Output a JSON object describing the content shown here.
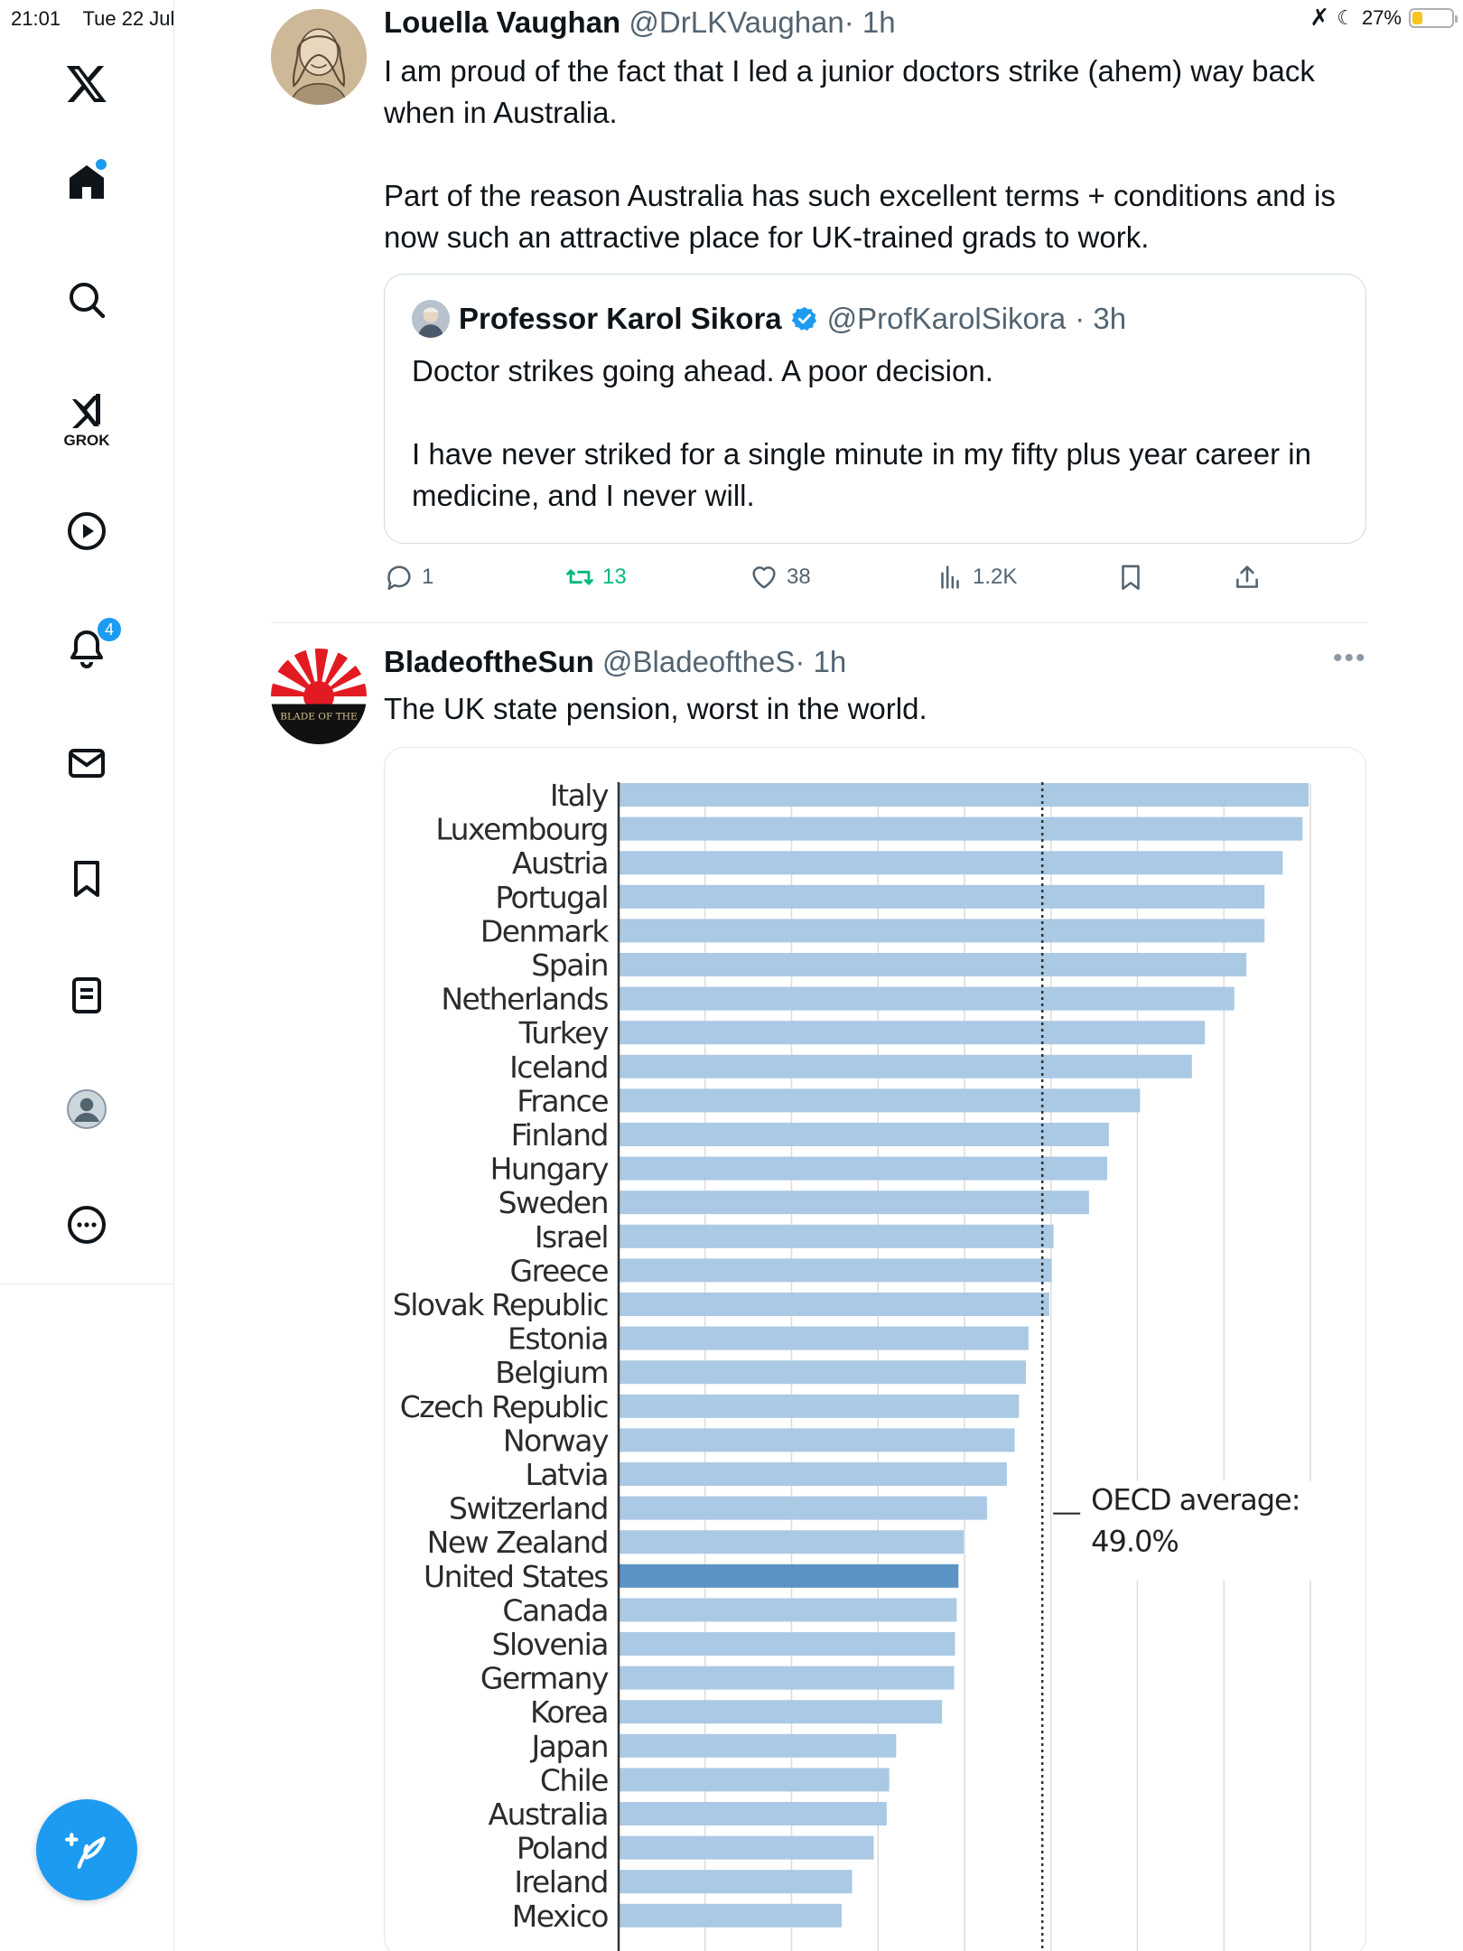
{
  "status_bar": {
    "time": "21:01",
    "date": "Tue 22 Jul",
    "battery": "27%",
    "battery_level": 0.27
  },
  "sidebar": {
    "grok_label": "GROK",
    "notification_count": "4",
    "items": [
      "home",
      "search",
      "grok",
      "videos",
      "notifications",
      "messages",
      "bookmarks",
      "lists",
      "profile",
      "more"
    ]
  },
  "tweet1": {
    "name": "Louella Vaughan",
    "handle": "@DrLKVaughan",
    "time": "· 1h",
    "text1": "I am proud of the fact that I led a junior doctors strike (ahem) way back when in Australia.",
    "text2": "Part of the reason Australia has such excellent terms + conditions and is now such an attractive place for UK-trained grads to work.",
    "quote": {
      "name": "Professor Karol Sikora",
      "handle": "@ProfKarolSikora",
      "time": "· 3h",
      "text1": "Doctor strikes going ahead. A poor decision.",
      "text2": "I have never striked for a single minute in my fifty plus year career in medicine, and I never will."
    },
    "actions": {
      "replies": "1",
      "retweets": "13",
      "likes": "38",
      "views": "1.2K"
    }
  },
  "tweet2": {
    "name": "BladeoftheSun",
    "handle": "@BladeoftheS",
    "time": "· 1h",
    "text": "The UK state pension, worst in the world.",
    "avatar_text": "BLADE OF THE"
  },
  "colors": {
    "accent": "#1d9bf0",
    "bar": "#aac9e4",
    "bar_highlight": "#5b93c4",
    "retweet": "#00ba7c"
  },
  "chart_data": {
    "type": "bar",
    "orientation": "horizontal",
    "categories": [
      "Italy",
      "Luxembourg",
      "Austria",
      "Portugal",
      "Denmark",
      "Spain",
      "Netherlands",
      "Turkey",
      "Iceland",
      "France",
      "Finland",
      "Hungary",
      "Sweden",
      "Israel",
      "Greece",
      "Slovak Republic",
      "Estonia",
      "Belgium",
      "Czech Republic",
      "Norway",
      "Latvia",
      "Switzerland",
      "New Zealand",
      "United States",
      "Canada",
      "Slovenia",
      "Germany",
      "Korea",
      "Japan",
      "Chile",
      "Australia",
      "Poland",
      "Ireland",
      "Mexico"
    ],
    "values": [
      79.8,
      79.1,
      76.8,
      74.7,
      74.7,
      72.6,
      71.2,
      67.8,
      66.3,
      60.3,
      56.7,
      56.5,
      54.4,
      50.3,
      50.1,
      49.8,
      47.4,
      47.1,
      46.3,
      45.8,
      44.9,
      42.6,
      39.9,
      39.3,
      39.1,
      38.9,
      38.8,
      37.4,
      32.1,
      31.3,
      31.0,
      29.5,
      27.0,
      25.8
    ],
    "highlight": "United States",
    "reference_line": {
      "label_line1": "OECD average:",
      "label_line2": "49.0%",
      "value": 49.0
    },
    "xlim": [
      0,
      80
    ],
    "grid": true
  }
}
